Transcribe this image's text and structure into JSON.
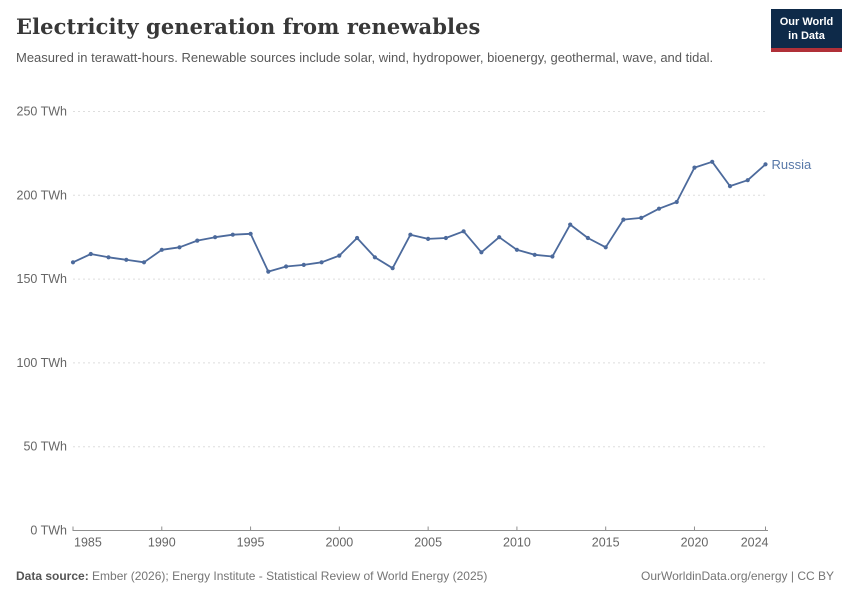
{
  "header": {
    "title": "Electricity generation from renewables",
    "subtitle": "Measured in terawatt-hours. Renewable sources include solar, wind, hydropower, bioenergy, geothermal, wave, and tidal.",
    "logo": {
      "line1": "Our World",
      "line2": "in Data"
    }
  },
  "chart_data": {
    "type": "line",
    "title": "Electricity generation from renewables",
    "unit": "TWh",
    "x": [
      1985,
      1986,
      1987,
      1988,
      1989,
      1990,
      1991,
      1992,
      1993,
      1994,
      1995,
      1996,
      1997,
      1998,
      1999,
      2000,
      2001,
      2002,
      2003,
      2004,
      2005,
      2006,
      2007,
      2008,
      2009,
      2010,
      2011,
      2012,
      2013,
      2014,
      2015,
      2016,
      2017,
      2018,
      2019,
      2020,
      2021,
      2022,
      2023,
      2024
    ],
    "series": [
      {
        "name": "Russia",
        "color": "#4C6A9C",
        "label_color": "#5878A8",
        "values": [
          160,
          165,
          163,
          161.5,
          160,
          167.5,
          169,
          173,
          175,
          176.5,
          177,
          154.5,
          157.5,
          158.5,
          160,
          164,
          174.5,
          163,
          156.5,
          176.5,
          174,
          174.5,
          178.5,
          166,
          175,
          167.5,
          164.5,
          163.5,
          182.5,
          174.5,
          169,
          185.5,
          186.5,
          192,
          196,
          216.5,
          220,
          205.5,
          209,
          218.5
        ]
      }
    ],
    "ylim": [
      0,
      250
    ],
    "yticks": [
      0,
      50,
      100,
      150,
      200,
      250
    ],
    "ytick_labels": [
      "0 TWh",
      "50 TWh",
      "100 TWh",
      "150 TWh",
      "200 TWh",
      "250 TWh"
    ],
    "xticks": [
      1985,
      1990,
      1995,
      2000,
      2005,
      2010,
      2015,
      2020,
      2024
    ],
    "xtick_labels": [
      "1985",
      "1990",
      "1995",
      "2000",
      "2005",
      "2010",
      "2015",
      "2020",
      "2024"
    ],
    "xlabel": "",
    "ylabel": "",
    "grid": "horizontal-dashed",
    "legend_position": "end-of-line",
    "end_label": "Russia"
  },
  "footer": {
    "datasource_label": "Data source:",
    "datasource_text": " Ember (2026); Energy Institute - Statistical Review of World Energy (2025)",
    "link_text": "OurWorldinData.org/energy | CC BY"
  },
  "colors": {
    "line": "#4C6A9C",
    "grid": "#dedede",
    "axis": "#8f8f8f",
    "tick_text": "#666666",
    "logo_bg": "#0e2a49",
    "logo_red": "#b03038"
  }
}
